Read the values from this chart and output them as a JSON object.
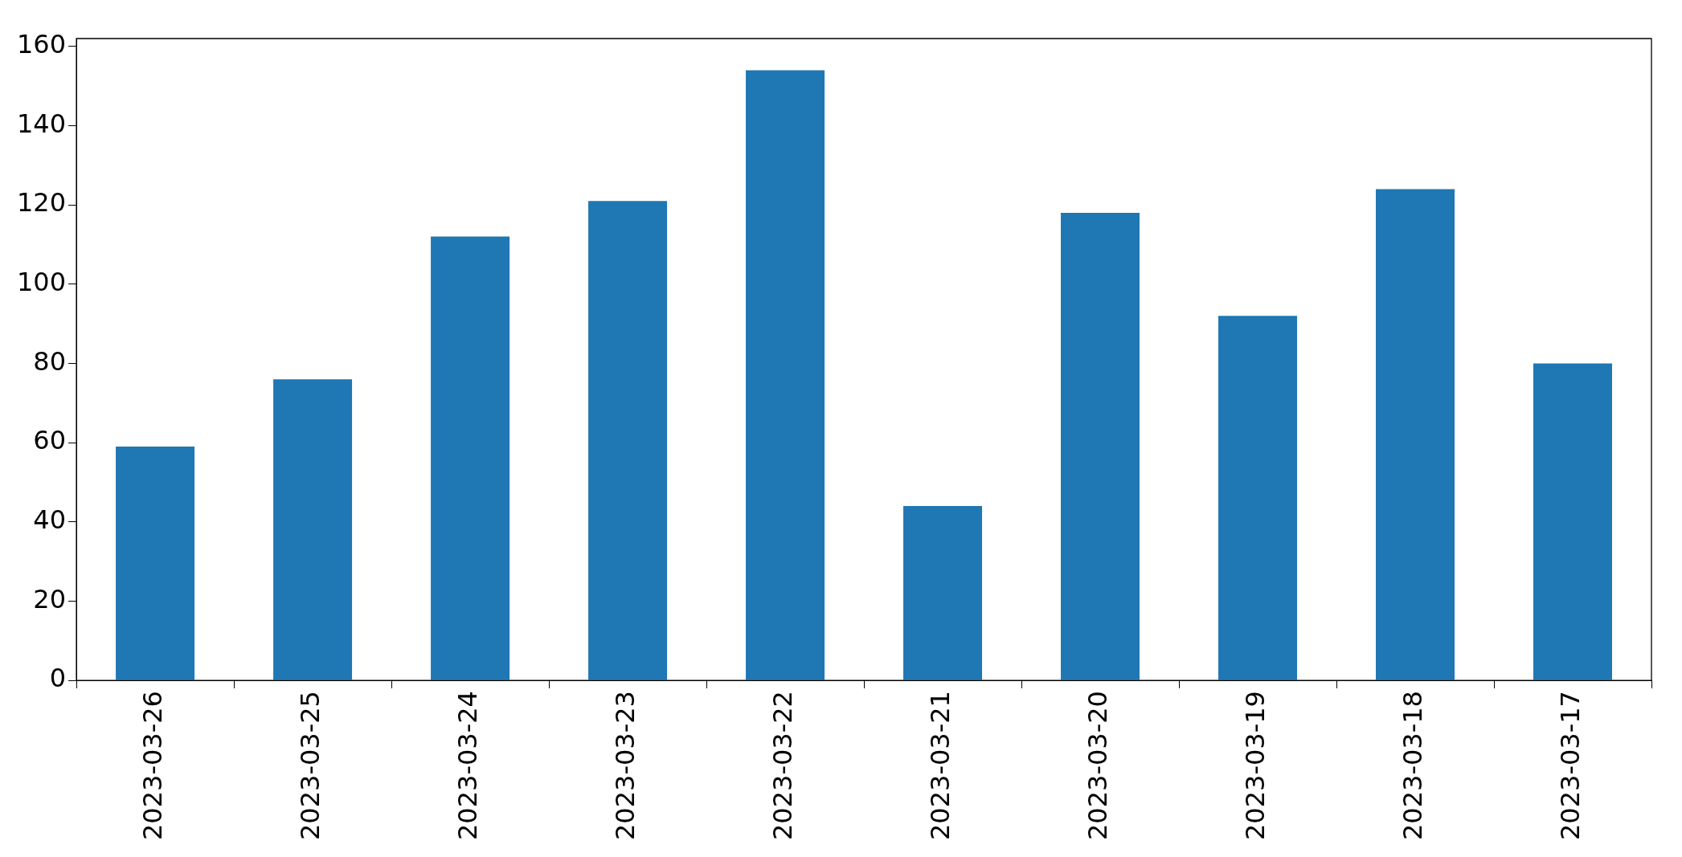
{
  "chart_data": {
    "type": "bar",
    "categories": [
      "2023-03-26",
      "2023-03-25",
      "2023-03-24",
      "2023-03-23",
      "2023-03-22",
      "2023-03-21",
      "2023-03-20",
      "2023-03-19",
      "2023-03-18",
      "2023-03-17"
    ],
    "values": [
      59,
      76,
      112,
      121,
      154,
      44,
      118,
      92,
      124,
      80
    ],
    "color": "#1f77b4",
    "ylim": [
      0,
      162
    ],
    "yticks": [
      0,
      20,
      40,
      60,
      80,
      100,
      120,
      140,
      160
    ],
    "grid": false,
    "legend": false
  }
}
